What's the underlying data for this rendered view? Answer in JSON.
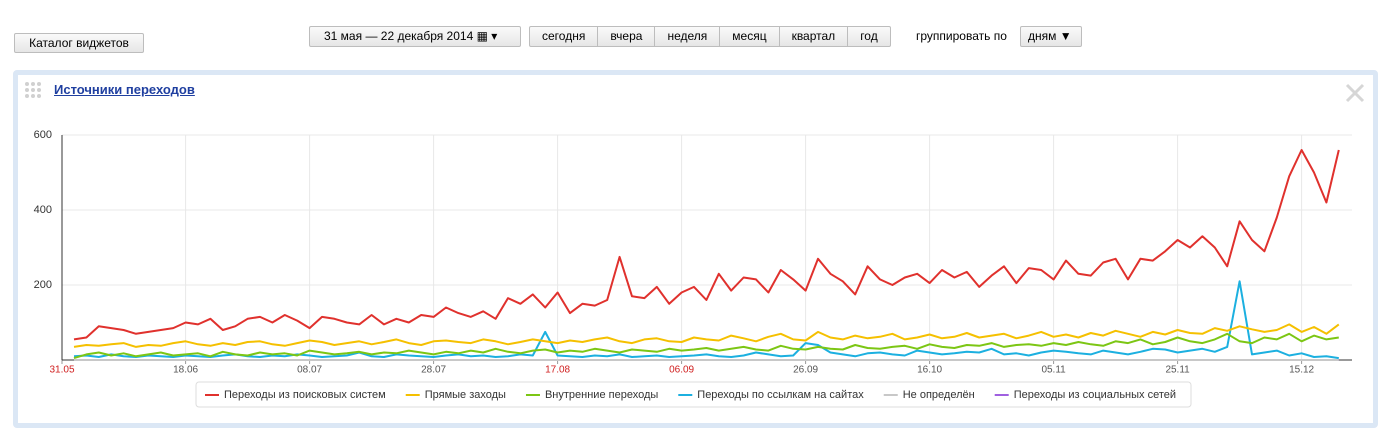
{
  "toolbar": {
    "catalog_button": "Каталог виджетов",
    "date_range": "31 мая — 22 декабря 2014",
    "periods": [
      "сегодня",
      "вчера",
      "неделя",
      "месяц",
      "квартал",
      "год"
    ],
    "group_by_label": "группировать по",
    "group_by_value": "дням"
  },
  "widget": {
    "title": "Источники переходов"
  },
  "chart_data": {
    "type": "line",
    "categories": [
      "31.05",
      null,
      null,
      null,
      null,
      null,
      null,
      null,
      null,
      "18.06",
      null,
      null,
      null,
      null,
      null,
      null,
      null,
      null,
      null,
      "08.07",
      null,
      null,
      null,
      null,
      null,
      null,
      null,
      null,
      null,
      "28.07",
      null,
      null,
      null,
      null,
      null,
      null,
      null,
      null,
      null,
      "17.08",
      null,
      null,
      null,
      null,
      null,
      null,
      null,
      null,
      null,
      "06.09",
      null,
      null,
      null,
      null,
      null,
      null,
      null,
      null,
      null,
      "26.09",
      null,
      null,
      null,
      null,
      null,
      null,
      null,
      null,
      null,
      "16.10",
      null,
      null,
      null,
      null,
      null,
      null,
      null,
      null,
      null,
      "05.11",
      null,
      null,
      null,
      null,
      null,
      null,
      null,
      null,
      null,
      "25.11",
      null,
      null,
      null,
      null,
      null,
      null,
      null,
      null,
      null,
      "15.12",
      null,
      null,
      null
    ],
    "series": [
      {
        "name": "Переходы из поисковых систем",
        "color": "#e0312d",
        "values": [
          55,
          60,
          90,
          85,
          80,
          70,
          75,
          80,
          85,
          100,
          95,
          110,
          80,
          90,
          110,
          115,
          100,
          120,
          105,
          85,
          115,
          110,
          100,
          95,
          120,
          95,
          110,
          100,
          120,
          115,
          140,
          125,
          115,
          130,
          110,
          165,
          150,
          175,
          140,
          180,
          125,
          150,
          145,
          160,
          275,
          170,
          165,
          195,
          150,
          180,
          195,
          160,
          230,
          185,
          220,
          215,
          180,
          240,
          215,
          185,
          270,
          230,
          210,
          175,
          250,
          215,
          200,
          220,
          230,
          205,
          240,
          220,
          235,
          195,
          225,
          250,
          205,
          245,
          240,
          215,
          265,
          230,
          225,
          260,
          270,
          215,
          270,
          265,
          290,
          320,
          300,
          330,
          300,
          250,
          370,
          320,
          290,
          380,
          490,
          560,
          500,
          420,
          560
        ]
      },
      {
        "name": "Прямые заходы",
        "color": "#f5c000",
        "values": [
          35,
          40,
          38,
          42,
          45,
          35,
          40,
          38,
          45,
          50,
          42,
          38,
          45,
          40,
          48,
          50,
          42,
          38,
          45,
          52,
          48,
          40,
          45,
          50,
          42,
          48,
          55,
          45,
          40,
          50,
          52,
          48,
          45,
          55,
          50,
          42,
          48,
          55,
          50,
          45,
          52,
          48,
          55,
          60,
          50,
          45,
          55,
          58,
          50,
          48,
          60,
          55,
          52,
          65,
          58,
          50,
          62,
          70,
          55,
          52,
          75,
          60,
          55,
          65,
          58,
          62,
          70,
          55,
          60,
          68,
          58,
          62,
          72,
          60,
          65,
          70,
          58,
          65,
          75,
          62,
          68,
          60,
          72,
          65,
          78,
          70,
          62,
          75,
          68,
          80,
          72,
          70,
          85,
          78,
          90,
          82,
          75,
          80,
          95,
          75,
          88,
          70,
          95
        ]
      },
      {
        "name": "Внутренние переходы",
        "color": "#7cc614",
        "values": [
          5,
          15,
          20,
          12,
          18,
          10,
          15,
          20,
          12,
          15,
          18,
          10,
          22,
          15,
          12,
          20,
          15,
          18,
          12,
          25,
          20,
          15,
          18,
          22,
          15,
          20,
          18,
          25,
          20,
          15,
          22,
          18,
          25,
          20,
          30,
          22,
          18,
          25,
          28,
          20,
          25,
          22,
          30,
          25,
          20,
          28,
          25,
          22,
          30,
          25,
          28,
          32,
          25,
          30,
          35,
          28,
          25,
          38,
          30,
          28,
          35,
          30,
          28,
          40,
          32,
          30,
          35,
          38,
          30,
          42,
          35,
          32,
          40,
          38,
          45,
          35,
          40,
          42,
          38,
          45,
          40,
          48,
          42,
          38,
          50,
          45,
          55,
          42,
          48,
          60,
          50,
          45,
          55,
          70,
          50,
          45,
          60,
          55,
          70,
          50,
          65,
          55,
          60
        ]
      },
      {
        "name": "Переходы по ссылкам на сайтах",
        "color": "#1cb0e0",
        "values": [
          10,
          12,
          8,
          15,
          10,
          8,
          12,
          10,
          8,
          12,
          10,
          8,
          12,
          15,
          10,
          8,
          12,
          10,
          15,
          12,
          8,
          10,
          12,
          20,
          10,
          8,
          15,
          12,
          10,
          8,
          12,
          15,
          10,
          12,
          8,
          10,
          15,
          12,
          75,
          12,
          10,
          8,
          12,
          10,
          15,
          8,
          10,
          12,
          8,
          10,
          12,
          15,
          10,
          8,
          12,
          20,
          15,
          10,
          12,
          45,
          40,
          20,
          15,
          10,
          18,
          20,
          15,
          12,
          25,
          20,
          15,
          18,
          22,
          20,
          30,
          15,
          18,
          12,
          20,
          25,
          22,
          18,
          15,
          25,
          20,
          15,
          22,
          30,
          28,
          20,
          25,
          30,
          22,
          35,
          210,
          15,
          20,
          25,
          12,
          18,
          8,
          10,
          5
        ]
      },
      {
        "name": "Не определён",
        "color": "#c8c8c8",
        "values": [
          0,
          0,
          0,
          0,
          0,
          0,
          0,
          0,
          0,
          0,
          0,
          0,
          0,
          0,
          0,
          0,
          0,
          0,
          0,
          0,
          0,
          0,
          0,
          0,
          0,
          0,
          0,
          0,
          0,
          0,
          0,
          0,
          0,
          0,
          0,
          0,
          0,
          0,
          0,
          0,
          0,
          0,
          0,
          0,
          0,
          0,
          0,
          0,
          0,
          0,
          0,
          0,
          0,
          0,
          0,
          0,
          0,
          0,
          0,
          0,
          0,
          0,
          0,
          0,
          0,
          0,
          0,
          0,
          0,
          0,
          0,
          0,
          0,
          0,
          0,
          0,
          0,
          0,
          0,
          0,
          0,
          0,
          0,
          0,
          0,
          0,
          0,
          0,
          0,
          0,
          0,
          0,
          0,
          0,
          0,
          0,
          0,
          0,
          0,
          0,
          0,
          0,
          0
        ]
      },
      {
        "name": "Переходы из социальных сетей",
        "color": "#a060e0",
        "values": [
          0,
          0,
          0,
          0,
          0,
          0,
          0,
          0,
          0,
          0,
          0,
          0,
          0,
          0,
          0,
          0,
          0,
          0,
          0,
          0,
          0,
          0,
          0,
          0,
          0,
          0,
          0,
          0,
          0,
          0,
          0,
          0,
          0,
          0,
          0,
          0,
          0,
          0,
          0,
          0,
          0,
          0,
          0,
          0,
          0,
          0,
          0,
          0,
          0,
          0,
          0,
          0,
          0,
          0,
          0,
          0,
          0,
          0,
          0,
          0,
          0,
          0,
          0,
          0,
          0,
          0,
          0,
          0,
          0,
          0,
          0,
          0,
          0,
          0,
          0,
          0,
          0,
          0,
          0,
          0,
          0,
          0,
          0,
          0,
          0,
          0,
          0,
          0,
          0,
          0,
          0,
          0,
          0,
          0,
          0,
          0,
          0,
          0,
          0,
          0,
          0,
          0,
          0
        ]
      }
    ],
    "ylim": [
      0,
      600
    ],
    "yticks": [
      200,
      400,
      600
    ],
    "grid": true
  }
}
